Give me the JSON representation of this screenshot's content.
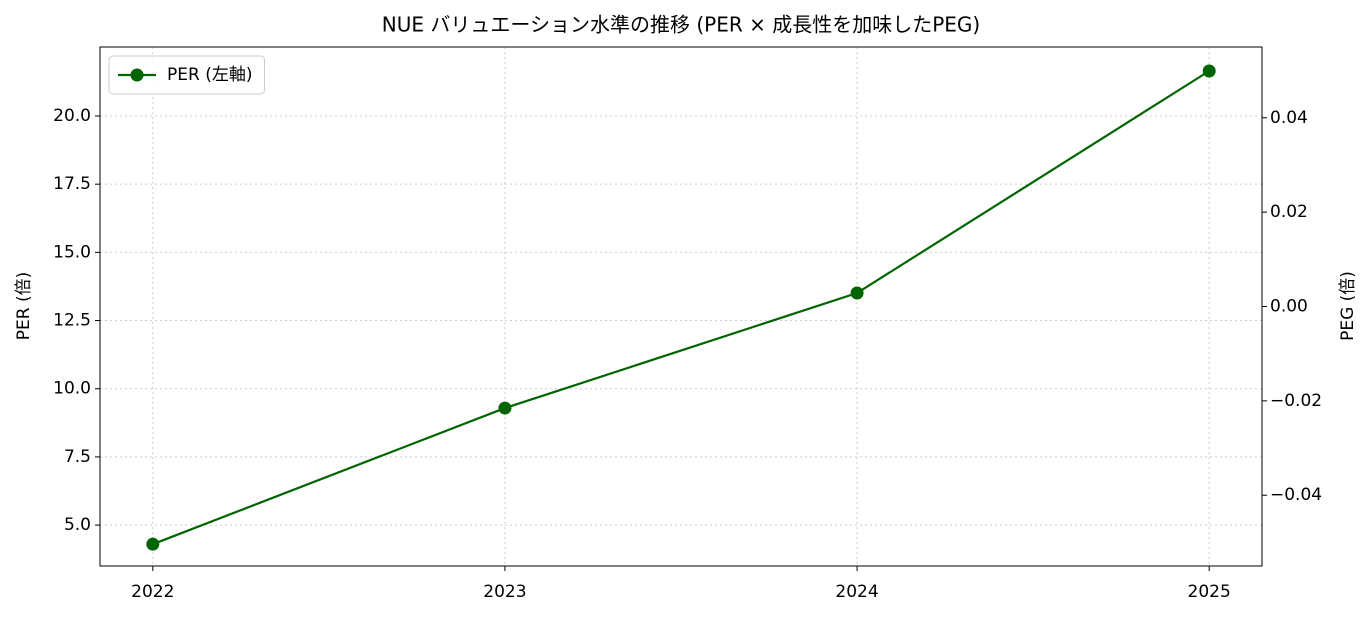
{
  "chart_data": {
    "type": "line",
    "title": "NUE バリュエーション水準の推移 (PER × 成長性を加味したPEG)",
    "ylabel": "PER (倍)",
    "y2label": "PEG (倍)",
    "x": [
      2022,
      2023,
      2024,
      2025
    ],
    "xlim": [
      2021.85,
      2025.15
    ],
    "xticks": [
      2022,
      2023,
      2024,
      2025
    ],
    "ylim": [
      3.5,
      22.53
    ],
    "yticks": [
      {
        "value": 5,
        "label": "5.0"
      },
      7.5,
      {
        "value": 10,
        "label": "10.0"
      },
      12.5,
      {
        "value": 15,
        "label": "15.0"
      },
      17.5,
      {
        "value": 20,
        "label": "20.0"
      }
    ],
    "y2lim": [
      -0.055,
      0.055
    ],
    "y2ticks": [
      {
        "value": -0.04,
        "label": "−0.04"
      },
      {
        "value": -0.02,
        "label": "−0.02"
      },
      {
        "value": 0,
        "label": "0.00"
      },
      0.02,
      0.04
    ],
    "grid": true,
    "legend": "upper left",
    "series": [
      {
        "name": "PER (左軸)",
        "color": "#006400",
        "values": [
          4.3,
          9.29,
          13.51,
          21.65
        ]
      }
    ]
  }
}
